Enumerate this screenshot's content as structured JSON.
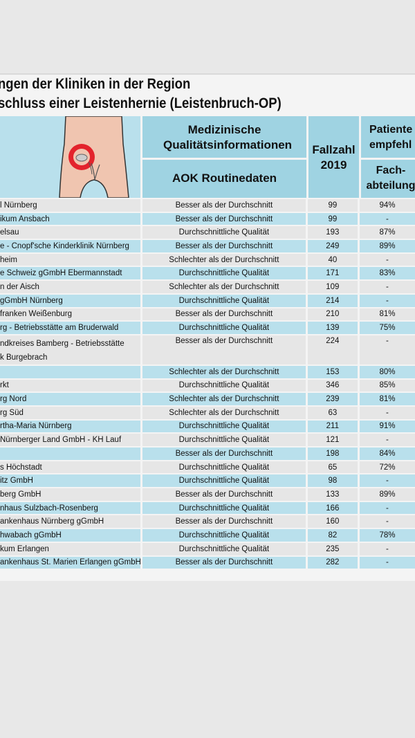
{
  "title": {
    "line1": "ngen der Kliniken in der Region",
    "line2": "schluss einer Leistenhernie (Leistenbruch-OP)"
  },
  "header": {
    "quality_title": "Medizinische Qualitätsinformationen",
    "quality_sub": "AOK Routinedaten",
    "fallzahl": "Fallzahl 2019",
    "patients_title": "Patiente empfehl",
    "patients_sub": "Fach- abteilung"
  },
  "illustration": {
    "icon": "body-hernia-icon",
    "accent": "#e3232c"
  },
  "colors": {
    "accent_row": "#b9e0ec",
    "plain_row": "#e6e6e6",
    "header": "#9fd3e2"
  },
  "rows": [
    {
      "name": "l Nürnberg",
      "quality": "Besser als der Durchschnitt",
      "fallzahl": "99",
      "rec": "94%"
    },
    {
      "name": "ikum Ansbach",
      "quality": "Besser als der Durchschnitt",
      "fallzahl": "99",
      "rec": "-"
    },
    {
      "name": "elsau",
      "quality": "Durchschnittliche Qualität",
      "fallzahl": "193",
      "rec": "87%"
    },
    {
      "name": "e - Cnopf'sche Kinderklinik Nürnberg",
      "quality": "Besser als der Durchschnitt",
      "fallzahl": "249",
      "rec": "89%"
    },
    {
      "name": "heim",
      "quality": "Schlechter als der Durchschnitt",
      "fallzahl": "40",
      "rec": "-"
    },
    {
      "name": "e Schweiz gGmbH Ebermannstadt",
      "quality": "Durchschnittliche Qualität",
      "fallzahl": "171",
      "rec": "83%"
    },
    {
      "name": "n der Aisch",
      "quality": "Schlechter als der Durchschnitt",
      "fallzahl": "109",
      "rec": "-"
    },
    {
      "name": "gGmbH Nürnberg",
      "quality": "Durchschnittliche Qualität",
      "fallzahl": "214",
      "rec": "-"
    },
    {
      "name": "franken Weißenburg",
      "quality": "Besser als der Durchschnitt",
      "fallzahl": "210",
      "rec": "81%"
    },
    {
      "name": "rg - Betriebsstätte am Bruderwald",
      "quality": "Durchschnittliche Qualität",
      "fallzahl": "139",
      "rec": "75%"
    },
    {
      "name": "ndkreises Bamberg - Betriebsstätte",
      "name2": "k Burgebrach",
      "quality": "Besser als der Durchschnitt",
      "fallzahl": "224",
      "rec": "-"
    },
    {
      "name": "",
      "quality": "Schlechter als der Durchschnitt",
      "fallzahl": "153",
      "rec": "80%"
    },
    {
      "name": "rkt",
      "quality": "Durchschnittliche Qualität",
      "fallzahl": "346",
      "rec": "85%"
    },
    {
      "name": "rg Nord",
      "quality": "Schlechter als der Durchschnitt",
      "fallzahl": "239",
      "rec": "81%"
    },
    {
      "name": "rg Süd",
      "quality": "Schlechter als der Durchschnitt",
      "fallzahl": "63",
      "rec": "-"
    },
    {
      "name": "rtha-Maria Nürnberg",
      "quality": "Durchschnittliche Qualität",
      "fallzahl": "211",
      "rec": "91%"
    },
    {
      "name": "Nürnberger Land GmbH - KH Lauf",
      "quality": "Durchschnittliche Qualität",
      "fallzahl": "121",
      "rec": "-"
    },
    {
      "name": "",
      "quality": "Besser als der Durchschnitt",
      "fallzahl": "198",
      "rec": "84%"
    },
    {
      "name": "s Höchstadt",
      "quality": "Durchschnittliche Qualität",
      "fallzahl": "65",
      "rec": "72%"
    },
    {
      "name": "itz GmbH",
      "quality": "Durchschnittliche Qualität",
      "fallzahl": "98",
      "rec": "-"
    },
    {
      "name": "berg GmbH",
      "quality": "Besser als der Durchschnitt",
      "fallzahl": "133",
      "rec": "89%"
    },
    {
      "name": "nhaus Sulzbach-Rosenberg",
      "quality": "Durchschnittliche Qualität",
      "fallzahl": "166",
      "rec": "-"
    },
    {
      "name": "ankenhaus Nürnberg gGmbH",
      "quality": "Besser als der Durchschnitt",
      "fallzahl": "160",
      "rec": "-"
    },
    {
      "name": "hwabach gGmbH",
      "quality": "Durchschnittliche Qualität",
      "fallzahl": "82",
      "rec": "78%"
    },
    {
      "name": "kum Erlangen",
      "quality": "Durchschnittliche Qualität",
      "fallzahl": "235",
      "rec": "-"
    },
    {
      "name": "ankenhaus St. Marien Erlangen gGmbH",
      "quality": "Besser als der Durchschnitt",
      "fallzahl": "282",
      "rec": "-"
    }
  ]
}
